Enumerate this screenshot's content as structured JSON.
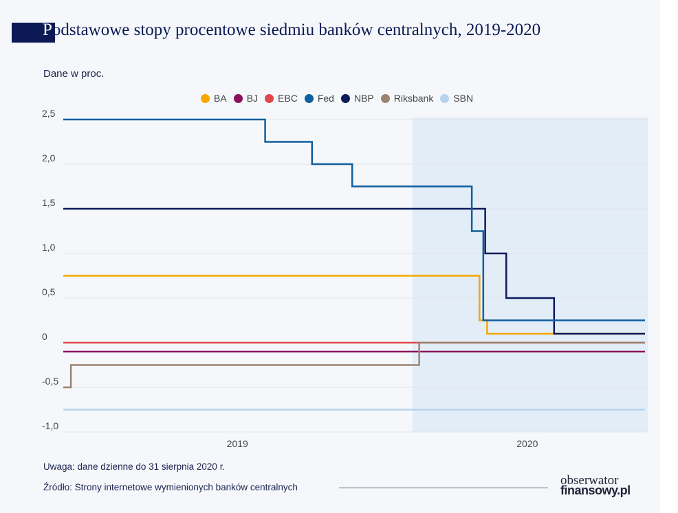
{
  "title_first_letter": "P",
  "title_rest": "odstawowe stopy procentowe siedmiu banków centralnych, 2019-2020",
  "chart_data": {
    "type": "line",
    "step": true,
    "ylabel": "Dane w proc.",
    "ylim": [
      -1.0,
      2.5
    ],
    "yticks": [
      2.5,
      2.0,
      1.5,
      1.0,
      0.5,
      0,
      -0.5,
      -1.0
    ],
    "ytick_labels": [
      "2,5",
      "2,0",
      "1,5",
      "1,0",
      "0,5",
      "0",
      "-0,5",
      "-1,0"
    ],
    "xlim": [
      "2019-01-01",
      "2020-08-31"
    ],
    "xtick_labels": [
      "2019",
      "2020"
    ],
    "shaded_range": [
      "2020-01-01",
      "2020-08-31"
    ],
    "grid": true,
    "legend_position": "top",
    "series": [
      {
        "name": "BA",
        "color": "#f5a800",
        "points": [
          [
            "2019-01-01",
            0.75
          ],
          [
            "2020-03-11",
            0.25
          ],
          [
            "2020-03-19",
            0.1
          ]
        ]
      },
      {
        "name": "BJ",
        "color": "#8b0f5e",
        "points": [
          [
            "2019-01-01",
            -0.1
          ]
        ]
      },
      {
        "name": "EBC",
        "color": "#e0474c",
        "points": [
          [
            "2019-01-01",
            0
          ]
        ]
      },
      {
        "name": "Fed",
        "color": "#0f5f9e",
        "points": [
          [
            "2019-01-01",
            2.5
          ],
          [
            "2019-07-31",
            2.25
          ],
          [
            "2019-09-18",
            2.0
          ],
          [
            "2019-10-30",
            1.75
          ],
          [
            "2020-03-03",
            1.25
          ],
          [
            "2020-03-15",
            0.25
          ]
        ]
      },
      {
        "name": "NBP",
        "color": "#0a1a5c",
        "points": [
          [
            "2019-01-01",
            1.5
          ],
          [
            "2020-03-17",
            1.0
          ],
          [
            "2020-04-08",
            0.5
          ],
          [
            "2020-05-28",
            0.1
          ]
        ]
      },
      {
        "name": "Riksbank",
        "color": "#9b8470",
        "points": [
          [
            "2019-01-01",
            -0.5
          ],
          [
            "2019-01-09",
            -0.25
          ],
          [
            "2020-01-08",
            0
          ]
        ]
      },
      {
        "name": "SBN",
        "color": "#b7d4ee",
        "points": [
          [
            "2019-01-01",
            -0.75
          ]
        ]
      }
    ]
  },
  "note": "Uwaga: dane dzienne do 31 sierpnia 2020 r.",
  "source": "Źródło: Strony internetowe wymienionych banków centralnych",
  "logo": {
    "line1": "obserwator",
    "line2": "finansowy.pl"
  }
}
